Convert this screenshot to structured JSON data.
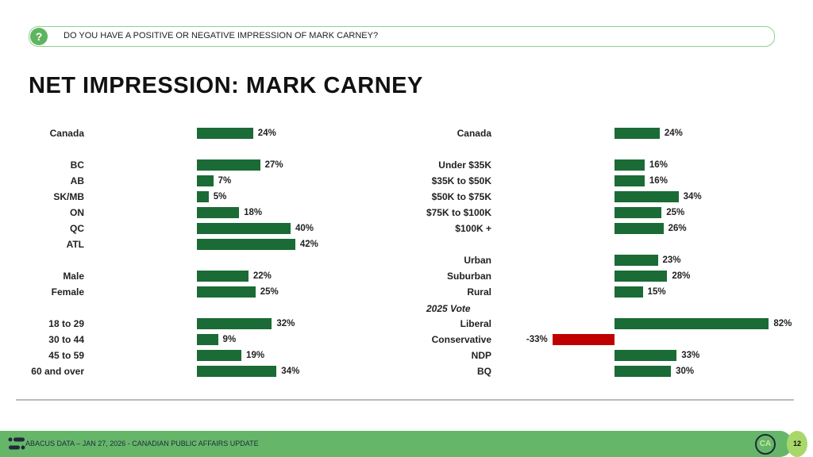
{
  "question": "DO YOU HAVE A POSITIVE OR NEGATIVE IMPRESSION OF MARK CARNEY?",
  "question_icon": "question-icon",
  "title": "NET IMPRESSION: MARK CARNEY",
  "footer": {
    "text": "ABACUS DATA  – JAN 27, 2026 - CANADIAN PUBLIC AFFAIRS UPDATE",
    "badge": "CA",
    "page": "12"
  },
  "colors": {
    "positive": "#1a6b35",
    "negative": "#c00000",
    "footer": "#66b66a"
  },
  "chart_data": [
    {
      "type": "bar",
      "orientation": "horizontal",
      "unit": "%",
      "categories": [
        "Canada",
        "BC",
        "AB",
        "SK/MB",
        "ON",
        "QC",
        "ATL",
        "Male",
        "Female",
        "18 to 29",
        "30 to 44",
        "45 to 59",
        "60 and over"
      ],
      "values": [
        24,
        27,
        7,
        5,
        18,
        40,
        42,
        22,
        25,
        32,
        9,
        19,
        34
      ],
      "labels": [
        "24%",
        "27%",
        "7%",
        "5%",
        "18%",
        "40%",
        "42%",
        "22%",
        "25%",
        "32%",
        "9%",
        "19%",
        "34%"
      ]
    },
    {
      "type": "bar",
      "orientation": "horizontal",
      "unit": "%",
      "group_label": "2025 Vote",
      "categories": [
        "Canada",
        "Under $35K",
        "$35K to $50K",
        "$50K to $75K",
        "$75K to $100K",
        "$100K +",
        "Urban",
        "Suburban",
        "Rural",
        "Liberal",
        "Conservative",
        "NDP",
        "BQ"
      ],
      "values": [
        24,
        16,
        16,
        34,
        25,
        26,
        23,
        28,
        15,
        82,
        -33,
        33,
        30
      ],
      "labels": [
        "24%",
        "16%",
        "16%",
        "34%",
        "25%",
        "26%",
        "23%",
        "28%",
        "15%",
        "82%",
        "-33%",
        "33%",
        "30%"
      ]
    }
  ]
}
